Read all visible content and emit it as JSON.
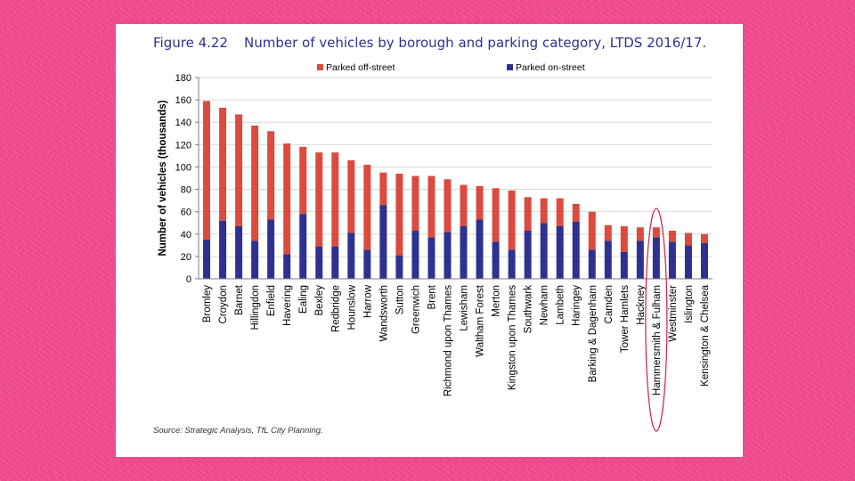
{
  "slide": {
    "figure_number": "Figure 4.22",
    "figure_title": "Number of vehicles by borough and parking category, LTDS 2016/17.",
    "source": "Source: Strategic Analysis, TfL City Planning."
  },
  "colors": {
    "off_street": "#dd4a3e",
    "on_street": "#2e3192",
    "highlight": "#d81b3c",
    "gridline": "#d9d9d9",
    "title": "#2e3192"
  },
  "chart_data": {
    "type": "bar",
    "stacked": true,
    "title": "Number of vehicles by borough and parking category, LTDS 2016/17.",
    "xlabel": "",
    "ylabel": "Number of vehicles (thousands)",
    "ylim": [
      0,
      180
    ],
    "yticks": [
      0,
      20,
      40,
      60,
      80,
      100,
      120,
      140,
      160,
      180
    ],
    "grid": true,
    "legend_position": "top",
    "highlighted_category": "Hammersmith & Fulham",
    "categories": [
      "Bromley",
      "Croydon",
      "Barnet",
      "Hillingdon",
      "Enfield",
      "Havering",
      "Ealing",
      "Bexley",
      "Redbridge",
      "Hounslow",
      "Harrow",
      "Wandsworth",
      "Sutton",
      "Greenwich",
      "Brent",
      "Richmond upon Thames",
      "Lewisham",
      "Waltham Forest",
      "Merton",
      "Kingston upon Thames",
      "Southwark",
      "Newham",
      "Lambeth",
      "Haringey",
      "Barking & Dagenham",
      "Camden",
      "Tower Hamlets",
      "Hackney",
      "Hammersmith & Fulham",
      "Westminster",
      "Islington",
      "Kensington & Chelsea"
    ],
    "series": [
      {
        "name": "Parked on-street",
        "values": [
          35,
          52,
          47,
          34,
          53,
          22,
          58,
          29,
          29,
          41,
          26,
          66,
          21,
          43,
          37,
          42,
          47,
          53,
          33,
          26,
          43,
          50,
          47,
          51,
          26,
          34,
          24,
          34,
          37,
          33,
          30,
          32
        ]
      },
      {
        "name": "Parked off-street",
        "values": [
          124,
          101,
          100,
          103,
          79,
          99,
          60,
          84,
          84,
          65,
          76,
          29,
          73,
          49,
          55,
          47,
          37,
          30,
          48,
          53,
          30,
          22,
          25,
          16,
          34,
          14,
          23,
          12,
          9,
          10,
          11,
          8
        ]
      }
    ],
    "legend": [
      {
        "name": "Parked off-street"
      },
      {
        "name": "Parked on-street"
      }
    ]
  }
}
